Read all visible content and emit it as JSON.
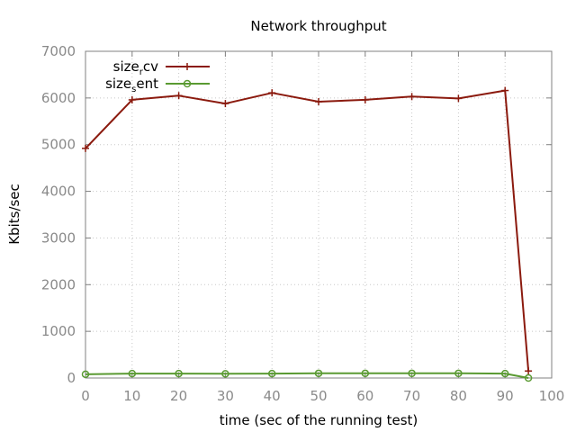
{
  "chart_data": {
    "type": "line",
    "title": "Network throughput",
    "xlabel": "time (sec of the running test)",
    "ylabel": "Kbits/sec",
    "xlim": [
      0,
      100
    ],
    "ylim": [
      0,
      7000
    ],
    "xticks": [
      "0",
      "10",
      "20",
      "30",
      "40",
      "50",
      "60",
      "70",
      "80",
      "90",
      "100"
    ],
    "yticks": [
      "0",
      "1000",
      "2000",
      "3000",
      "4000",
      "5000",
      "6000",
      "7000"
    ],
    "grid": true,
    "legend_position": "top-left",
    "series": [
      {
        "name": "size_rcv",
        "legend_main": "size",
        "legend_sub": "r",
        "legend_tail": "cv",
        "color": "#8b1a0e",
        "marker": "plus",
        "x": [
          0,
          10,
          20,
          30,
          40,
          50,
          60,
          70,
          80,
          90,
          95
        ],
        "y": [
          4920,
          5960,
          6050,
          5880,
          6110,
          5920,
          5960,
          6030,
          5990,
          6160,
          150
        ]
      },
      {
        "name": "size_sent",
        "legend_main": "size",
        "legend_sub": "s",
        "legend_tail": "ent",
        "color": "#5a9a32",
        "marker": "circle",
        "x": [
          0,
          10,
          20,
          30,
          40,
          50,
          60,
          70,
          80,
          90,
          95
        ],
        "y": [
          80,
          95,
          95,
          90,
          95,
          100,
          100,
          100,
          100,
          95,
          0
        ]
      }
    ]
  }
}
